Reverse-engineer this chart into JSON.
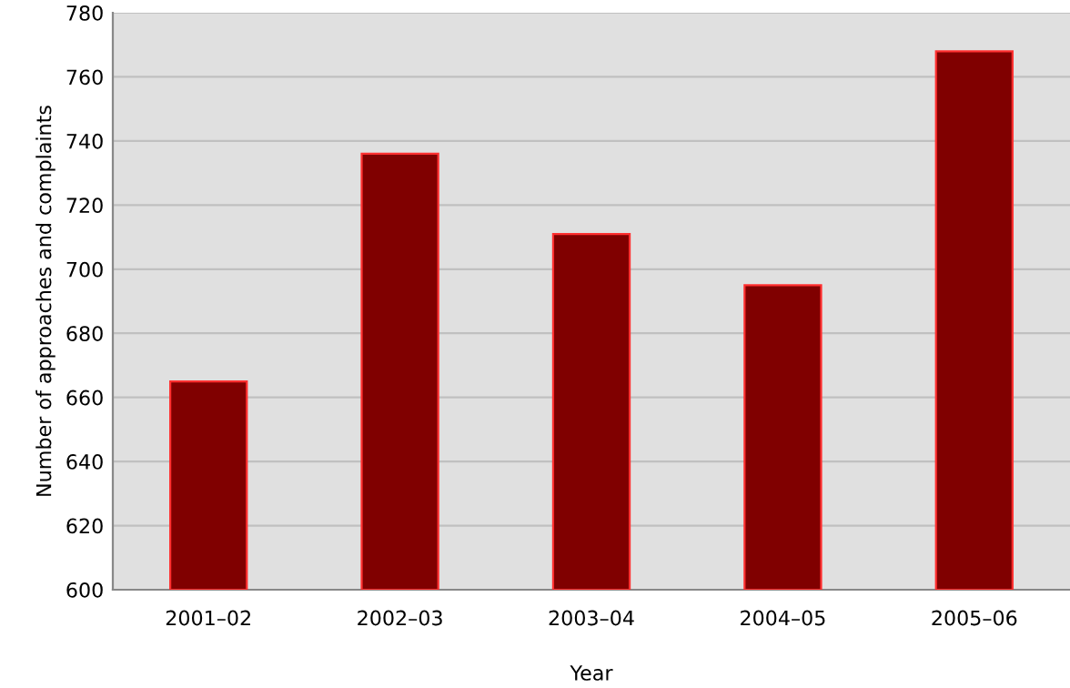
{
  "chart_data": {
    "type": "bar",
    "xlabel": "Year",
    "ylabel": "Number of approaches and complaints",
    "categories": [
      "2001–02",
      "2002–03",
      "2003–04",
      "2004–05",
      "2005–06"
    ],
    "values": [
      665,
      736,
      711,
      695,
      768
    ],
    "color": "#800000",
    "ylim": [
      600,
      780
    ],
    "yticks": [
      600,
      620,
      640,
      660,
      680,
      700,
      720,
      740,
      760,
      780
    ],
    "grid": "y",
    "legend": false
  }
}
